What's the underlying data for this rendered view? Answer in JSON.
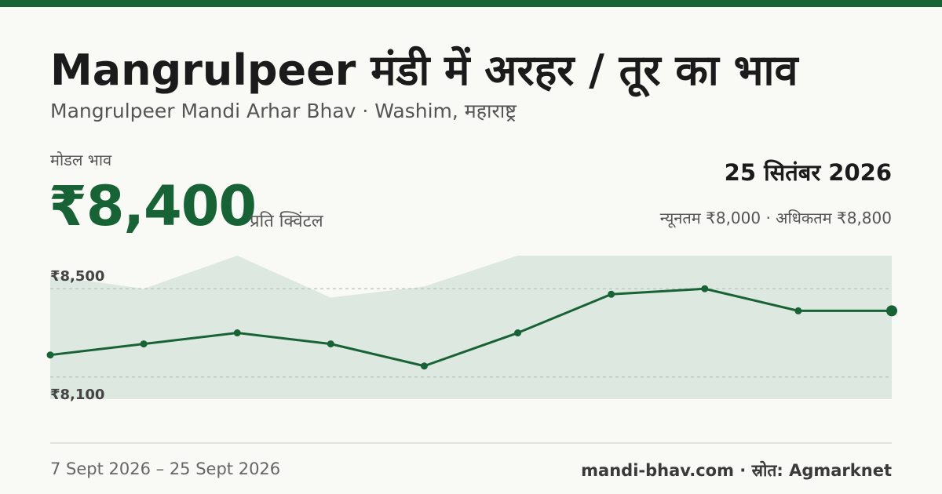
{
  "header": {
    "title": "Mangrulpeer मंडी में अरहर / तूर का भाव",
    "subtitle": "Mangrulpeer Mandi Arhar Bhav · Washim, महाराष्ट्र"
  },
  "price": {
    "label": "मोडल भाव",
    "value": "₹8,400",
    "unit": "प्रति क्विंटल"
  },
  "summary": {
    "date": "25 सितंबर 2026",
    "range": "न्यूनतम ₹8,000 · अधिकतम ₹8,800"
  },
  "footer": {
    "date_range": "7 Sept 2026 – 25 Sept 2026",
    "source": "mandi-bhav.com · स्रोत: Agmarknet"
  },
  "colors": {
    "accent": "#186335",
    "band": "#dde8e0",
    "background": "#f9f9f5"
  },
  "chart_data": {
    "type": "line",
    "ytick_labels": [
      "₹8,500",
      "₹8,100"
    ],
    "yticks": [
      8500,
      8100
    ],
    "ylim": [
      8000,
      8650
    ],
    "grid": true,
    "series": [
      {
        "values": [
          8200,
          8250,
          8300,
          8250,
          8150,
          8300,
          8475,
          8500,
          8400,
          8400
        ]
      }
    ],
    "band_max": [
      8560,
      8500,
      8680,
      8460,
      8510,
      8700,
      8700,
      8700,
      8700,
      8700
    ],
    "band_min": [
      8000,
      8000,
      8000,
      8000,
      8000,
      8000,
      8000,
      8000,
      8000,
      8000
    ]
  }
}
